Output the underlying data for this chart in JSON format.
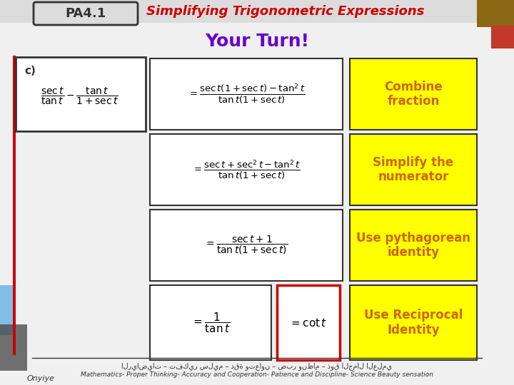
{
  "bg_color": "#f0f0f0",
  "title": "Simplifying Trigonometric Expressions",
  "title_color": "#cc0000",
  "subtitle": "Your Turn!",
  "subtitle_color": "#6600cc",
  "pa_label": "PA4.1",
  "step_labels": [
    "Combine\nfraction",
    "Simplify the\nnumerator",
    "Use pythagorean\nidentity",
    "Use Reciprocal\nIdentity"
  ],
  "step_label_color": "#cc6600",
  "step_label_bg": "#ffff00",
  "footer_text": "Mathematics- Proper Thinking- Accuracy and Cooperation- Patience and Discipline- Science Beauty sensation",
  "footer_arabic": "الرياضيات – تفكير سليم – دقة وتعاون – صبر ونظام – ذوق الجمال العلمي",
  "deco_colors_top_right": [
    "#8B6914",
    "#c0392b"
  ],
  "deco_colors_bottom_left": [
    "#5dade2",
    "#444444"
  ],
  "red_line_color": "#cc0000",
  "formula_border": "#333333",
  "cot_box_border": "#cc0000"
}
